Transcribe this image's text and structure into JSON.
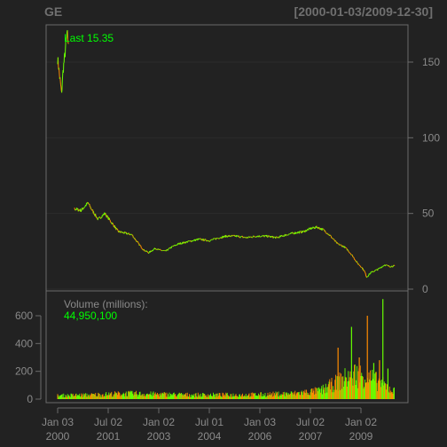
{
  "chart_data": {
    "type": "line",
    "title": "GE",
    "date_range": "[2000-01-03/2009-12-30]",
    "colors": {
      "background": "#222222",
      "up": "#66ff00",
      "down": "#ff8c00",
      "frame": "#6b6b6b",
      "text": "#8a8a8a",
      "highlight": "#00ff00"
    },
    "price_panel": {
      "last_label": "Last 15.35",
      "y_ticks": [
        0,
        50,
        100,
        150
      ],
      "ylim": [
        0,
        175
      ],
      "segments": [
        {
          "points": [
            [
              2000.0,
              152
            ],
            [
              2000.03,
              147
            ],
            [
              2000.06,
              140
            ],
            [
              2000.09,
              135
            ],
            [
              2000.12,
              128
            ],
            [
              2000.14,
              138
            ],
            [
              2000.17,
              146
            ],
            [
              2000.2,
              152
            ],
            [
              2000.23,
              158
            ],
            [
              2000.26,
              165
            ],
            [
              2000.29,
              168
            ],
            [
              2000.32,
              162
            ]
          ]
        },
        {
          "points": [
            [
              2000.5,
              53
            ],
            [
              2000.7,
              52
            ],
            [
              2000.9,
              57
            ],
            [
              2001.0,
              53
            ],
            [
              2001.2,
              46
            ],
            [
              2001.4,
              50
            ],
            [
              2001.6,
              44
            ],
            [
              2001.8,
              38
            ],
            [
              2002.0,
              37
            ],
            [
              2002.2,
              36
            ],
            [
              2002.4,
              30
            ],
            [
              2002.55,
              26
            ],
            [
              2002.7,
              24
            ],
            [
              2002.9,
              27
            ],
            [
              2003.0,
              26
            ],
            [
              2003.2,
              25
            ],
            [
              2003.4,
              28
            ],
            [
              2003.6,
              30
            ],
            [
              2003.8,
              31
            ],
            [
              2004.0,
              32
            ],
            [
              2004.2,
              33
            ],
            [
              2004.5,
              32
            ],
            [
              2004.8,
              34
            ],
            [
              2005.0,
              35
            ],
            [
              2005.3,
              35
            ],
            [
              2005.6,
              34
            ],
            [
              2005.9,
              35
            ],
            [
              2006.2,
              35
            ],
            [
              2006.5,
              34
            ],
            [
              2006.8,
              36
            ],
            [
              2007.0,
              37
            ],
            [
              2007.3,
              38
            ],
            [
              2007.5,
              40
            ],
            [
              2007.7,
              41
            ],
            [
              2007.9,
              39
            ],
            [
              2008.1,
              35
            ],
            [
              2008.3,
              30
            ],
            [
              2008.5,
              28
            ],
            [
              2008.6,
              26
            ],
            [
              2008.75,
              22
            ],
            [
              2008.9,
              17
            ],
            [
              2009.0,
              15
            ],
            [
              2009.1,
              12
            ],
            [
              2009.17,
              8
            ],
            [
              2009.3,
              11
            ],
            [
              2009.5,
              13
            ],
            [
              2009.7,
              16
            ],
            [
              2009.85,
              15
            ],
            [
              2010.0,
              15.35
            ]
          ]
        }
      ]
    },
    "volume_panel": {
      "label": "Volume (millions):",
      "last_value": "44,950,100",
      "y_ticks": [
        0,
        200,
        400,
        600
      ],
      "ylim": [
        0,
        700
      ],
      "profile": [
        [
          2000.0,
          25
        ],
        [
          2001.0,
          30
        ],
        [
          2002.0,
          40
        ],
        [
          2003.0,
          35
        ],
        [
          2004.0,
          30
        ],
        [
          2005.0,
          30
        ],
        [
          2006.0,
          32
        ],
        [
          2007.0,
          40
        ],
        [
          2007.8,
          60
        ],
        [
          2008.3,
          120
        ],
        [
          2008.8,
          180
        ],
        [
          2009.2,
          160
        ],
        [
          2009.6,
          110
        ],
        [
          2010.0,
          55
        ]
      ],
      "spikes": [
        [
          2008.32,
          370
        ],
        [
          2008.72,
          520
        ],
        [
          2009.19,
          600
        ],
        [
          2009.65,
          720
        ],
        [
          2009.55,
          280
        ],
        [
          2009.38,
          260
        ],
        [
          2008.95,
          300
        ],
        [
          2009.8,
          220
        ]
      ]
    },
    "x_ticks": [
      {
        "year": 2000.0,
        "label1": "Jan 03",
        "label2": "2000"
      },
      {
        "year": 2001.5,
        "label1": "Jul 02",
        "label2": "2001"
      },
      {
        "year": 2003.0,
        "label1": "Jan 02",
        "label2": "2003"
      },
      {
        "year": 2004.5,
        "label1": "Jul 01",
        "label2": "2004"
      },
      {
        "year": 2006.0,
        "label1": "Jan 03",
        "label2": "2006"
      },
      {
        "year": 2007.5,
        "label1": "Jul 02",
        "label2": "2007"
      },
      {
        "year": 2009.0,
        "label1": "Jan 02",
        "label2": "2009"
      }
    ],
    "xlim": [
      2000.0,
      2010.0
    ]
  }
}
